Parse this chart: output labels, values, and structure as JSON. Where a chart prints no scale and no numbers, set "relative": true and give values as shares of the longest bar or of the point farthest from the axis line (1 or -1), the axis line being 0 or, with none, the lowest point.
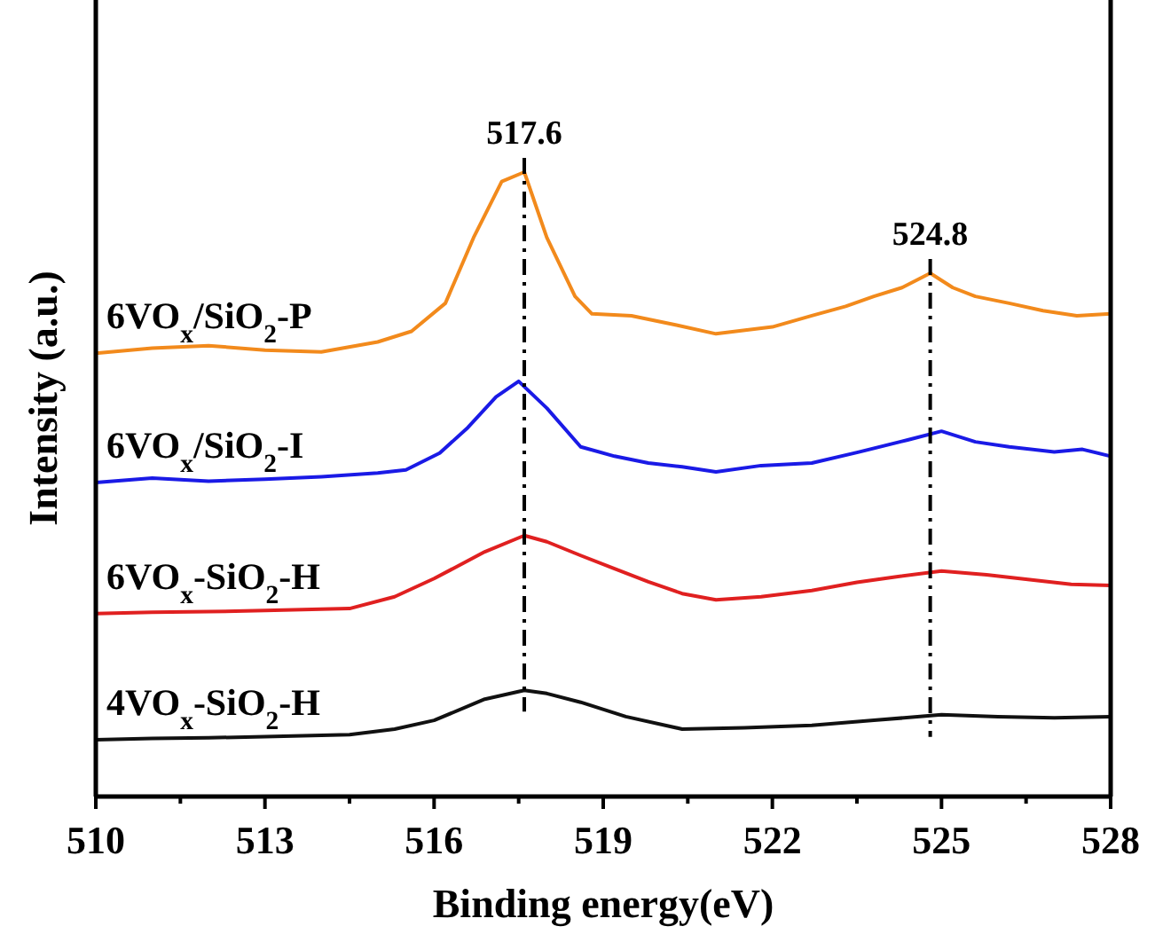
{
  "chart_data": {
    "type": "line",
    "relative": true,
    "xlabel": "Binding energy(eV)",
    "ylabel": "Intensity (a.u.)",
    "xlim": [
      510,
      528
    ],
    "xticks": [
      510,
      {
        "value": 511.5,
        "label": null
      },
      513,
      {
        "value": 514.5,
        "label": null
      },
      516,
      {
        "value": 517.5,
        "label": null
      },
      519,
      {
        "value": 520.5,
        "label": null
      },
      522,
      {
        "value": 523.5,
        "label": null
      },
      525,
      {
        "value": 526.5,
        "label": null
      },
      528
    ],
    "series": [
      {
        "name": "6VO$_{x}$/SiO$_{2}$-P",
        "color": "#f28a1c",
        "x": [
          510,
          511,
          512,
          513,
          514,
          515,
          515.6,
          516.2,
          516.7,
          517.2,
          517.6,
          518.0,
          518.5,
          518.8,
          519.5,
          520.3,
          521.0,
          522.0,
          522.7,
          523.3,
          523.8,
          524.3,
          524.8,
          525.2,
          525.6,
          526.2,
          526.8,
          527.4,
          528
        ],
        "values": [
          0.71,
          0.718,
          0.722,
          0.715,
          0.712,
          0.728,
          0.745,
          0.79,
          0.895,
          0.985,
          1.0,
          0.895,
          0.801,
          0.773,
          0.77,
          0.755,
          0.741,
          0.752,
          0.77,
          0.785,
          0.801,
          0.815,
          0.838,
          0.815,
          0.801,
          0.79,
          0.778,
          0.77,
          0.773
        ]
      },
      {
        "name": "6VO$_{x}$/SiO$_{2}$-I",
        "color": "#1a1ae6",
        "x": [
          510,
          511,
          512,
          513,
          514,
          515,
          515.5,
          516.1,
          516.6,
          517.1,
          517.5,
          518.0,
          518.6,
          519.2,
          519.8,
          520.4,
          521.0,
          521.8,
          522.7,
          523.5,
          524.4,
          525.0,
          525.6,
          526.2,
          527.0,
          527.5,
          528
        ],
        "values": [
          0.503,
          0.51,
          0.505,
          0.508,
          0.512,
          0.518,
          0.523,
          0.55,
          0.591,
          0.64,
          0.665,
          0.622,
          0.56,
          0.545,
          0.534,
          0.528,
          0.52,
          0.53,
          0.534,
          0.551,
          0.571,
          0.585,
          0.568,
          0.56,
          0.552,
          0.556,
          0.545
        ]
      },
      {
        "name": "6VO$_{x}$-SiO$_{2}$-H",
        "color": "#e02020",
        "x": [
          510,
          511,
          512,
          513,
          514.5,
          515.3,
          516.0,
          516.9,
          517.6,
          518.0,
          518.6,
          519.2,
          519.8,
          520.4,
          521.0,
          521.8,
          522.7,
          523.5,
          524.2,
          525.0,
          525.8,
          526.6,
          527.3,
          528
        ],
        "values": [
          0.293,
          0.295,
          0.296,
          0.298,
          0.301,
          0.32,
          0.349,
          0.392,
          0.418,
          0.408,
          0.386,
          0.365,
          0.344,
          0.325,
          0.315,
          0.32,
          0.33,
          0.343,
          0.352,
          0.361,
          0.355,
          0.347,
          0.34,
          0.338
        ]
      },
      {
        "name": "4VO$_{x}$-SiO$_{2}$-H",
        "color": "#111111",
        "x": [
          510,
          511,
          512,
          513,
          514.5,
          515.3,
          516.0,
          516.9,
          517.6,
          518.0,
          518.6,
          519.4,
          520.4,
          521.5,
          522.7,
          523.8,
          525.0,
          526.0,
          527.0,
          528
        ],
        "values": [
          0.091,
          0.093,
          0.094,
          0.096,
          0.099,
          0.108,
          0.122,
          0.156,
          0.17,
          0.165,
          0.151,
          0.128,
          0.108,
          0.11,
          0.114,
          0.122,
          0.131,
          0.128,
          0.126,
          0.128
        ]
      }
    ],
    "ref_lines": [
      {
        "axis": "x",
        "value": 517.6,
        "label": "517.6",
        "line_style": "dashed",
        "color": "#000000"
      },
      {
        "axis": "x",
        "value": 524.8,
        "label": "524.8",
        "line_style": "dashed",
        "color": "#000000"
      }
    ]
  }
}
